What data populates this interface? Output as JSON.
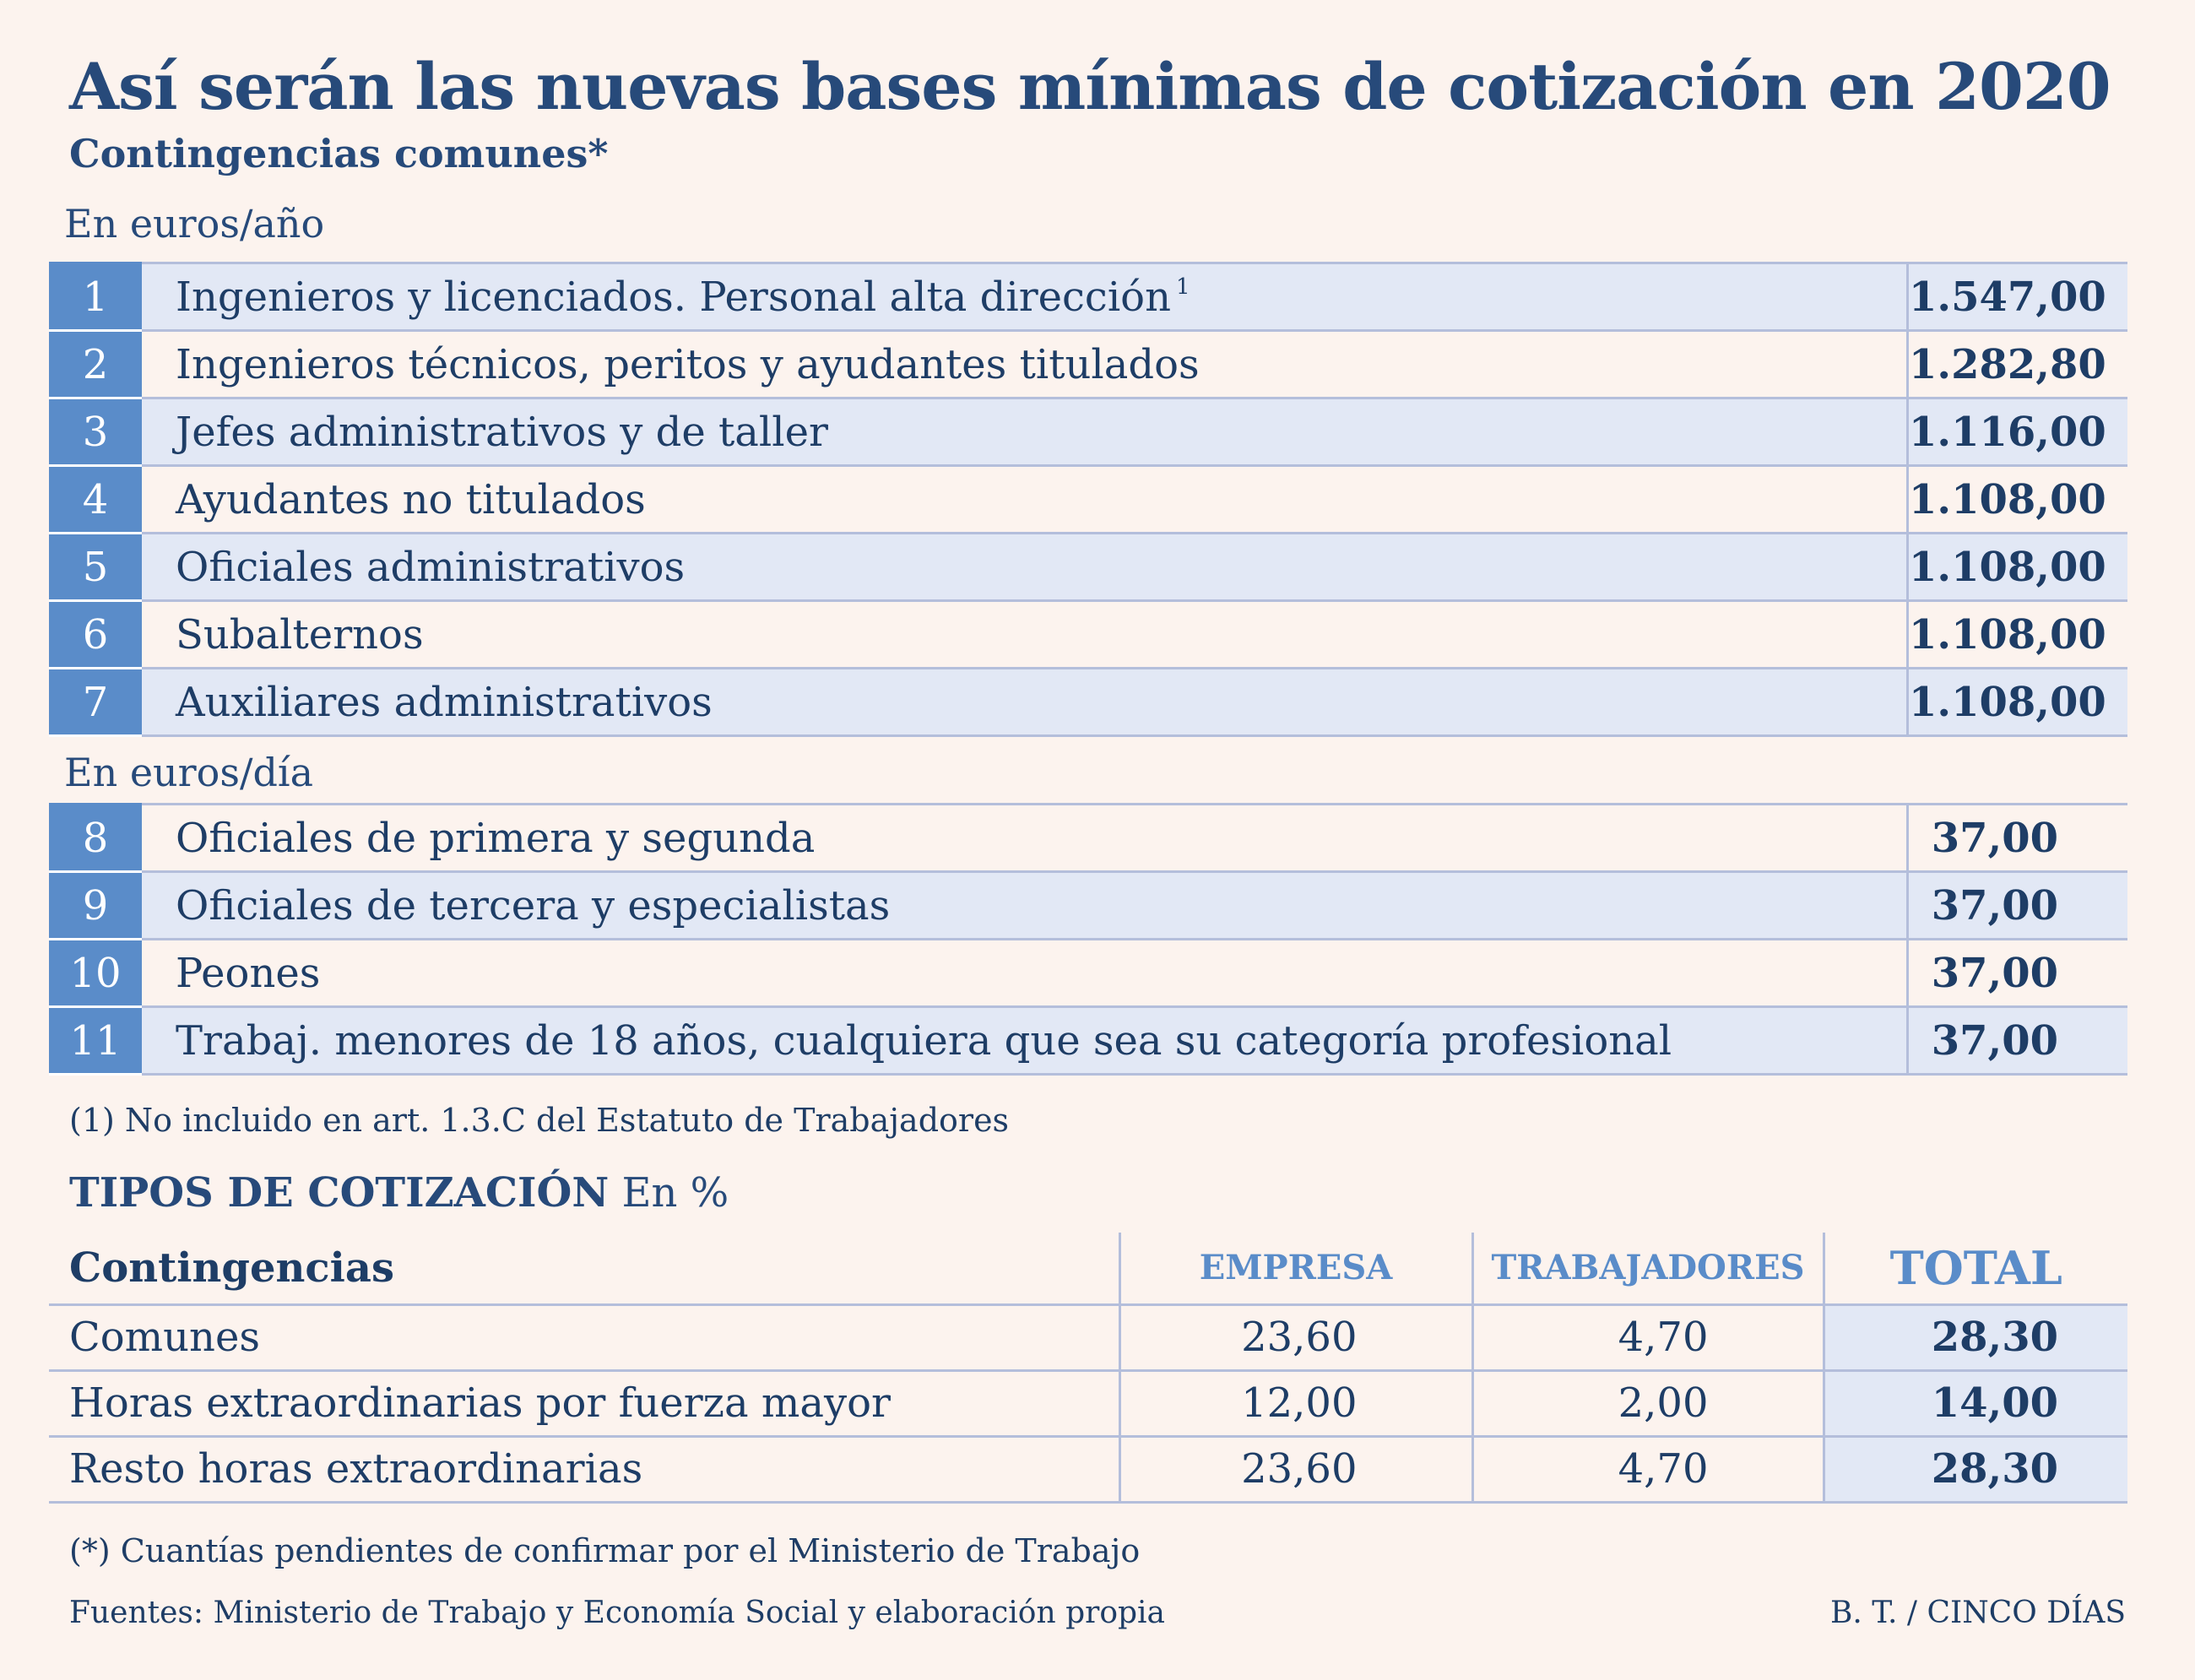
{
  "title": "Así serán las nuevas bases mínimas de cotización en 2020",
  "subtitle": "Contingencias comunes*",
  "section_year": {
    "unit": "En euros/año",
    "rows": [
      {
        "num": "1",
        "label": "Ingenieros y licenciados. Personal alta dirección",
        "footnote": "1",
        "value": "1.547,00"
      },
      {
        "num": "2",
        "label": "Ingenieros técnicos, peritos y ayudantes titulados",
        "value": "1.282,80"
      },
      {
        "num": "3",
        "label": "Jefes administrativos y de taller",
        "value": "1.116,00"
      },
      {
        "num": "4",
        "label": "Ayudantes no titulados",
        "value": "1.108,00"
      },
      {
        "num": "5",
        "label": "Oficiales administrativos",
        "value": "1.108,00"
      },
      {
        "num": "6",
        "label": "Subalternos",
        "value": "1.108,00"
      },
      {
        "num": "7",
        "label": "Auxiliares administrativos",
        "value": "1.108,00"
      }
    ]
  },
  "section_day": {
    "unit": "En euros/día",
    "rows": [
      {
        "num": "8",
        "label": "Oficiales de primera y segunda",
        "value": "37,00"
      },
      {
        "num": "9",
        "label": "Oficiales de tercera y especialistas",
        "value": "37,00"
      },
      {
        "num": "10",
        "label": "Peones",
        "value": "37,00"
      },
      {
        "num": "11",
        "label": "Trabaj. menores de 18 años, cualquiera que sea su categoría profesional",
        "value": "37,00"
      }
    ]
  },
  "note_1": "(1) No incluido en art. 1.3.C  del Estatuto de Trabajadores",
  "tipos": {
    "heading": "TIPOS DE COTIZACIÓN",
    "unit": "En %",
    "columns": {
      "label": "Contingencias",
      "empresa": "EMPRESA",
      "trabajadores": "TRABAJADORES",
      "total": "TOTAL"
    },
    "rows": [
      {
        "label": "Comunes",
        "empresa": "23,60",
        "trabajadores": "4,70",
        "total": "28,30"
      },
      {
        "label": "Horas extraordinarias por fuerza mayor",
        "empresa": "12,00",
        "trabajadores": "2,00",
        "total": "14,00"
      },
      {
        "label": "Resto horas extraordinarias",
        "empresa": "23,60",
        "trabajadores": "4,70",
        "total": "28,30"
      }
    ]
  },
  "note_2": "(*) Cuantías pendientes de confirmar por el Ministerio de Trabajo",
  "footer": {
    "sources": "Fuentes: Ministerio de Trabajo y Economía Social y elaboración propia",
    "credit": "B. T. / CINCO DÍAS"
  }
}
